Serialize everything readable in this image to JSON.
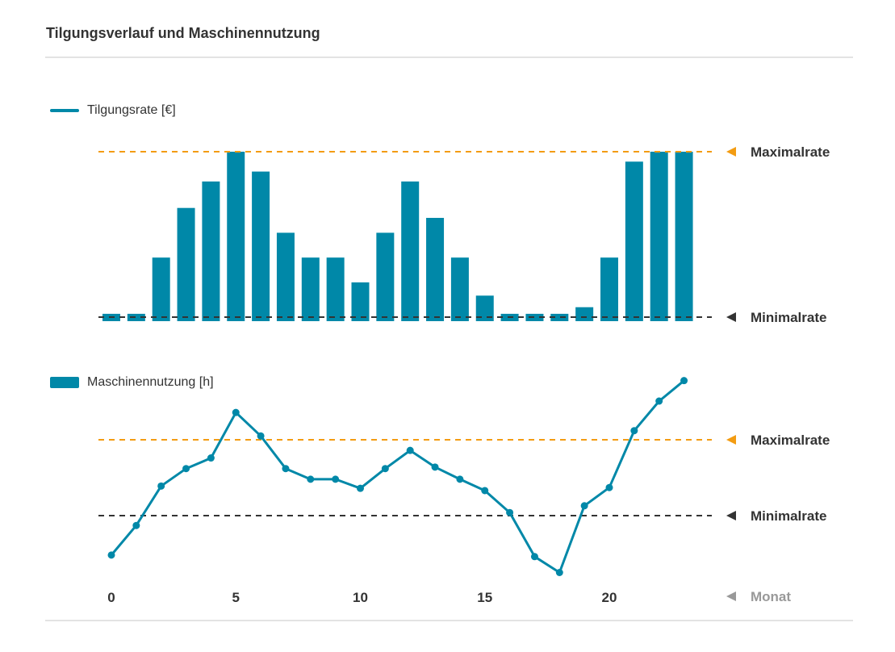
{
  "title": "Tilgungsverlauf und Maschinennutzung",
  "colors": {
    "series": "#0088a8",
    "max": "#f39c12",
    "min": "#333333",
    "axis_label": "#999999"
  },
  "chart_data": [
    {
      "type": "bar",
      "legend": "Tilgungsrate [€]",
      "x": [
        0,
        1,
        2,
        3,
        4,
        5,
        6,
        7,
        8,
        9,
        10,
        11,
        12,
        13,
        14,
        15,
        16,
        17,
        18,
        19,
        20,
        21,
        22,
        23
      ],
      "values": [
        0.02,
        0.02,
        0.36,
        0.66,
        0.82,
        1.0,
        0.88,
        0.51,
        0.36,
        0.36,
        0.21,
        0.51,
        0.82,
        0.6,
        0.36,
        0.13,
        0.02,
        0.02,
        0.02,
        0.06,
        0.36,
        0.94,
        1.0,
        1.0
      ],
      "reference_lines": [
        {
          "label": "Maximalrate",
          "value": 1.0,
          "color": "#f39c12"
        },
        {
          "label": "Minimalrate",
          "value": 0.0,
          "color": "#333333"
        }
      ]
    },
    {
      "type": "line",
      "legend": "Maschinennutzung [h]",
      "x": [
        0,
        1,
        2,
        3,
        4,
        5,
        6,
        7,
        8,
        9,
        10,
        11,
        12,
        13,
        14,
        15,
        16,
        17,
        18,
        19,
        20,
        21,
        22,
        23
      ],
      "values": [
        0.48,
        0.87,
        1.39,
        1.62,
        1.76,
        2.36,
        2.05,
        1.62,
        1.48,
        1.48,
        1.36,
        1.62,
        1.86,
        1.64,
        1.48,
        1.33,
        1.04,
        0.46,
        0.25,
        1.13,
        1.37,
        2.12,
        2.51,
        2.78
      ],
      "reference_lines": [
        {
          "label": "Maximalrate",
          "value": 2.0,
          "color": "#f39c12"
        },
        {
          "label": "Minimalrate",
          "value": 1.0,
          "color": "#333333"
        }
      ],
      "xlabel": "Monat",
      "xticks": [
        0,
        5,
        10,
        15,
        20
      ]
    }
  ]
}
